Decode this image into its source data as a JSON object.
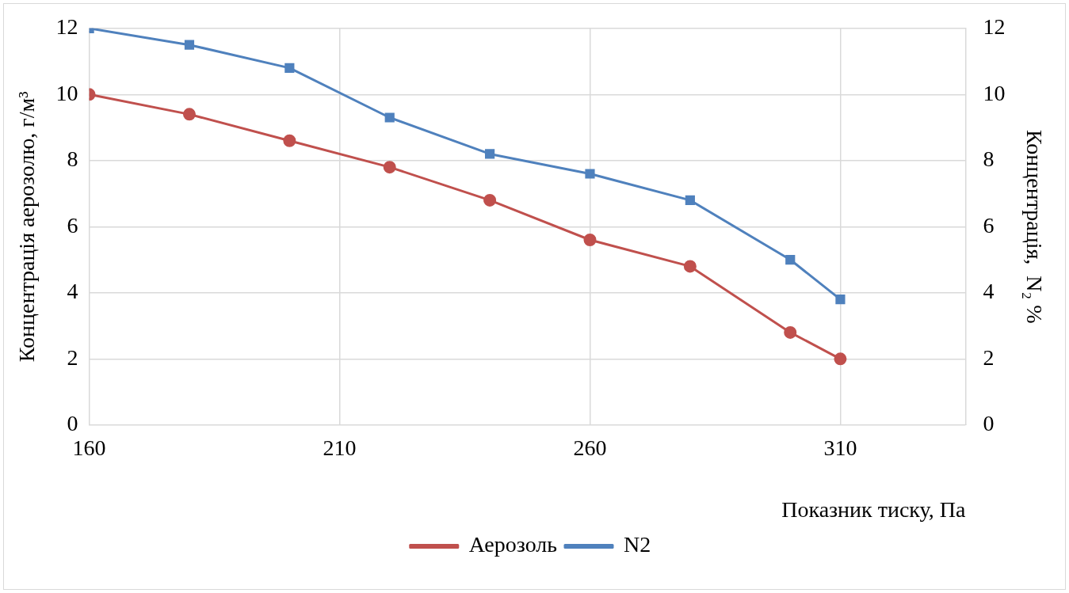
{
  "chart_data": {
    "type": "line",
    "xlabel": "Показник тиску, Па",
    "ylabel": "Концентрація аерозолю, г/м³",
    "y2label": "Концентрація,  N₂ %",
    "x": [
      160,
      180,
      200,
      220,
      240,
      260,
      280,
      300,
      310
    ],
    "series": [
      {
        "name": "Аерозоль",
        "color": "#c0504d",
        "marker": "circle",
        "values": [
          10,
          9.4,
          8.6,
          7.8,
          6.8,
          5.6,
          4.8,
          2.8,
          2.0
        ]
      },
      {
        "name": "N2",
        "color": "#4f81bd",
        "marker": "square",
        "axis": "y2",
        "values": [
          12,
          11.5,
          10.8,
          9.3,
          8.2,
          7.6,
          6.8,
          5.0,
          3.8
        ]
      }
    ],
    "xlim": [
      160,
      335
    ],
    "xticks": [
      160,
      210,
      260,
      310
    ],
    "ylim": [
      0,
      12
    ],
    "yticks": [
      0,
      2,
      4,
      6,
      8,
      10,
      12
    ],
    "y2lim": [
      0,
      12
    ],
    "y2ticks": [
      0,
      2,
      4,
      6,
      8,
      10,
      12
    ],
    "grid": true,
    "legend": "bottom",
    "line_style": "solid"
  }
}
